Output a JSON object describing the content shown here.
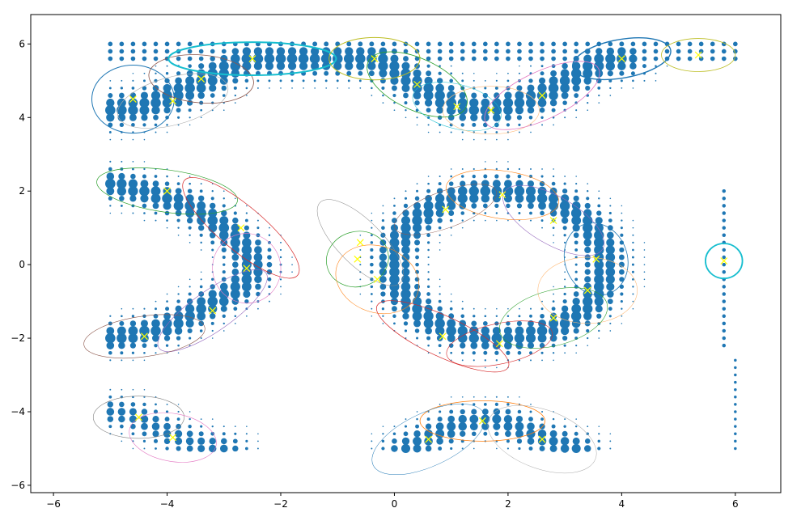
{
  "chart_data": {
    "type": "scatter",
    "title": "",
    "xlabel": "",
    "ylabel": "",
    "xlim": [
      -6.4,
      6.8
    ],
    "ylim": [
      -6.2,
      6.8
    ],
    "xticks": [
      -6,
      -4,
      -2,
      0,
      2,
      4,
      6
    ],
    "yticks": [
      -6,
      -4,
      -2,
      0,
      2,
      4,
      6
    ],
    "xtick_labels": [
      "−6",
      "−4",
      "−2",
      "0",
      "2",
      "4",
      "6"
    ],
    "ytick_labels": [
      "−6",
      "−4",
      "−2",
      "0",
      "2",
      "4",
      "6"
    ],
    "grid": false,
    "point_color": "#1f77b4",
    "center_marker_color": "#ffff00",
    "grid_points": {
      "x_range": [
        -5,
        6
      ],
      "y_range": [
        -5,
        6
      ],
      "step": 0.2,
      "description_of_density": "weighted grid samples on shapes"
    },
    "shapes": [
      {
        "kind": "row",
        "x0": -5.0,
        "x1": 6.0,
        "y0": 5.6,
        "y1": 6.0,
        "weight": 0.5
      },
      {
        "kind": "polyline",
        "points": [
          [
            -5.0,
            4.2
          ],
          [
            -4.4,
            4.3
          ],
          [
            -3.6,
            4.8
          ],
          [
            -2.6,
            5.6
          ],
          [
            -1.4,
            5.6
          ],
          [
            -0.3,
            5.6
          ],
          [
            0.4,
            4.9
          ],
          [
            1.1,
            4.3
          ],
          [
            1.7,
            4.2
          ],
          [
            2.6,
            4.6
          ],
          [
            3.6,
            5.5
          ],
          [
            4.0,
            5.6
          ]
        ],
        "width": 0.35,
        "weight": 1.0
      },
      {
        "kind": "polyline",
        "points": [
          [
            -5.0,
            2.2
          ],
          [
            -4.4,
            2.0
          ],
          [
            -3.6,
            1.6
          ],
          [
            -3.0,
            1.0
          ],
          [
            -2.6,
            0.4
          ],
          [
            -2.5,
            -0.1
          ],
          [
            -2.7,
            -0.6
          ],
          [
            -3.4,
            -1.2
          ],
          [
            -4.0,
            -1.7
          ],
          [
            -4.6,
            -1.9
          ],
          [
            -5.0,
            -2.0
          ]
        ],
        "width": 0.3,
        "weight": 1.0
      },
      {
        "kind": "ellipse_ring",
        "cx": 1.85,
        "cy": 0.0,
        "rx": 1.85,
        "ry": 2.0,
        "width": 0.3,
        "weight": 1.0
      },
      {
        "kind": "polyline",
        "points": [
          [
            -5.0,
            -4.0
          ],
          [
            -4.6,
            -4.1
          ],
          [
            -4.2,
            -4.4
          ],
          [
            -3.8,
            -4.7
          ],
          [
            -3.4,
            -4.9
          ],
          [
            -3.0,
            -5.0
          ]
        ],
        "width": 0.3,
        "weight": 0.8
      },
      {
        "kind": "polyline",
        "points": [
          [
            0.2,
            -5.0
          ],
          [
            0.6,
            -4.7
          ],
          [
            1.2,
            -4.3
          ],
          [
            1.8,
            -4.2
          ],
          [
            2.6,
            -4.7
          ],
          [
            3.2,
            -5.0
          ]
        ],
        "width": 0.3,
        "weight": 0.9
      },
      {
        "kind": "column",
        "x": 5.8,
        "y0": -2.2,
        "y1": 2.0,
        "weight": 0.4
      },
      {
        "kind": "column",
        "x": 6.0,
        "y0": -5.0,
        "y1": -2.6,
        "weight": 0.3
      }
    ],
    "ellipses": [
      {
        "cx": -4.6,
        "cy": 4.5,
        "w": 1.45,
        "h": 1.85,
        "angle": 0,
        "color": "#1f77b4",
        "lw": 1.0
      },
      {
        "cx": -3.9,
        "cy": 4.45,
        "w": 2.0,
        "h": 1.3,
        "angle": 15,
        "color": "#aaaaaa",
        "lw": 0.6
      },
      {
        "cx": -3.4,
        "cy": 5.05,
        "w": 1.85,
        "h": 1.3,
        "angle": -5,
        "color": "#8c564b",
        "lw": 0.8
      },
      {
        "cx": -2.5,
        "cy": 5.6,
        "w": 2.95,
        "h": 0.9,
        "angle": 0,
        "color": "#17becf",
        "lw": 2.0
      },
      {
        "cx": -0.35,
        "cy": 5.6,
        "w": 1.6,
        "h": 1.15,
        "angle": 0,
        "color": "#bcbd22",
        "lw": 1.0
      },
      {
        "cx": 0.4,
        "cy": 4.9,
        "w": 1.9,
        "h": 1.4,
        "angle": -25,
        "color": "#2ca02c",
        "lw": 0.8
      },
      {
        "cx": 1.1,
        "cy": 4.3,
        "w": 1.6,
        "h": 1.2,
        "angle": -15,
        "color": "#17becf",
        "lw": 0.5
      },
      {
        "cx": 1.7,
        "cy": 4.2,
        "w": 1.7,
        "h": 1.3,
        "angle": 0,
        "color": "#ffbb78",
        "lw": 0.6
      },
      {
        "cx": 2.6,
        "cy": 4.6,
        "w": 2.2,
        "h": 1.3,
        "angle": 25,
        "color": "#e377c2",
        "lw": 0.8
      },
      {
        "cx": 4.0,
        "cy": 5.6,
        "w": 1.75,
        "h": 1.05,
        "angle": 10,
        "color": "#1f77b4",
        "lw": 1.4
      },
      {
        "cx": 5.35,
        "cy": 5.7,
        "w": 1.3,
        "h": 0.9,
        "angle": 0,
        "color": "#bcbd22",
        "lw": 0.8
      },
      {
        "cx": -4.0,
        "cy": 2.0,
        "w": 2.5,
        "h": 1.15,
        "angle": -8,
        "color": "#2ca02c",
        "lw": 0.7
      },
      {
        "cx": -2.7,
        "cy": 1.0,
        "w": 2.6,
        "h": 1.2,
        "angle": -40,
        "color": "#d62728",
        "lw": 0.7
      },
      {
        "cx": -2.6,
        "cy": -0.1,
        "w": 1.2,
        "h": 1.9,
        "angle": 15,
        "color": "#e377c2",
        "lw": 0.6
      },
      {
        "cx": -3.2,
        "cy": -1.25,
        "w": 2.3,
        "h": 1.1,
        "angle": 35,
        "color": "#9467bd",
        "lw": 0.6
      },
      {
        "cx": -4.4,
        "cy": -1.95,
        "w": 2.15,
        "h": 1.1,
        "angle": 8,
        "color": "#8c564b",
        "lw": 0.6
      },
      {
        "cx": -0.6,
        "cy": 0.6,
        "w": 2.0,
        "h": 1.2,
        "angle": -45,
        "color": "#888888",
        "lw": 0.5
      },
      {
        "cx": -0.65,
        "cy": 0.15,
        "w": 1.1,
        "h": 1.5,
        "angle": 15,
        "color": "#2ca02c",
        "lw": 0.7
      },
      {
        "cx": -0.3,
        "cy": -0.4,
        "w": 1.5,
        "h": 1.8,
        "angle": -20,
        "color": "#ff7f0e",
        "lw": 0.6
      },
      {
        "cx": 0.85,
        "cy": -1.95,
        "w": 2.55,
        "h": 1.1,
        "angle": -25,
        "color": "#d62728",
        "lw": 0.7
      },
      {
        "cx": 0.9,
        "cy": 1.5,
        "w": 1.9,
        "h": 1.0,
        "angle": 20,
        "color": "#8c564b",
        "lw": 0.5
      },
      {
        "cx": 1.9,
        "cy": 1.9,
        "w": 2.0,
        "h": 1.3,
        "angle": -8,
        "color": "#ff7f0e",
        "lw": 0.6
      },
      {
        "cx": 2.8,
        "cy": 1.2,
        "w": 2.0,
        "h": 1.3,
        "angle": -30,
        "color": "#9467bd",
        "lw": 0.6
      },
      {
        "cx": 3.55,
        "cy": 0.15,
        "w": 1.1,
        "h": 2.0,
        "angle": 20,
        "color": "#1f77b4",
        "lw": 0.8
      },
      {
        "cx": 3.4,
        "cy": -0.7,
        "w": 1.75,
        "h": 1.8,
        "angle": 0,
        "color": "#ffbb78",
        "lw": 0.6
      },
      {
        "cx": 2.8,
        "cy": -1.45,
        "w": 1.95,
        "h": 1.5,
        "angle": 15,
        "color": "#2ca02c",
        "lw": 0.6
      },
      {
        "cx": 1.85,
        "cy": -2.15,
        "w": 1.9,
        "h": 1.1,
        "angle": 12,
        "color": "#d62728",
        "lw": 0.6
      },
      {
        "cx": -4.5,
        "cy": -4.15,
        "w": 1.6,
        "h": 1.15,
        "angle": 0,
        "color": "#7f7f7f",
        "lw": 0.6
      },
      {
        "cx": -3.9,
        "cy": -4.7,
        "w": 1.55,
        "h": 1.3,
        "angle": -10,
        "color": "#e377c2",
        "lw": 0.6
      },
      {
        "cx": 1.55,
        "cy": -4.25,
        "w": 2.2,
        "h": 1.1,
        "angle": 0,
        "color": "#ff7f0e",
        "lw": 0.8
      },
      {
        "cx": 0.6,
        "cy": -4.75,
        "w": 2.15,
        "h": 1.45,
        "angle": 25,
        "color": "#1f77b4",
        "lw": 0.5
      },
      {
        "cx": 2.6,
        "cy": -4.75,
        "w": 2.0,
        "h": 1.6,
        "angle": -20,
        "color": "#aaaaaa",
        "lw": 0.5
      },
      {
        "cx": 5.8,
        "cy": 0.1,
        "w": 0.65,
        "h": 0.95,
        "angle": 0,
        "color": "#17becf",
        "lw": 1.8
      }
    ]
  }
}
